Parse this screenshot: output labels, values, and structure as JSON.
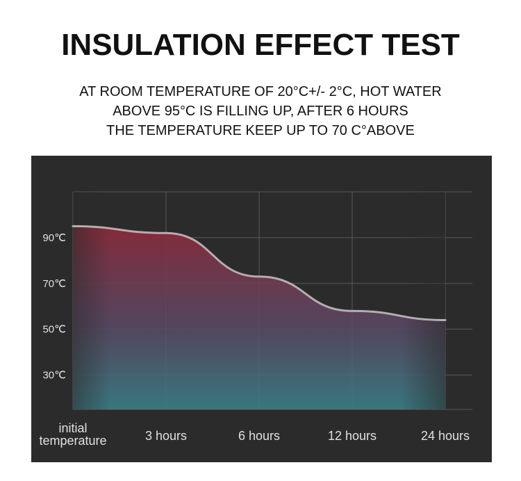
{
  "header": {
    "title": "INSULATION EFFECT TEST",
    "lines": [
      "AT ROOM TEMPERATURE OF 20°C+/- 2°C, HOT WATER",
      "ABOVE 95°C IS FILLING UP, AFTER 6 HOURS",
      "THE TEMPERATURE KEEP UP TO 70 C°ABOVE"
    ]
  },
  "chart_data": {
    "type": "area",
    "title": "",
    "xlabel": "",
    "ylabel": "",
    "categories": [
      "initial temperature",
      "3 hours",
      "6 hours",
      "12 hours",
      "24 hours"
    ],
    "x_tick_lines": [
      [
        "initial",
        "temperature"
      ],
      [
        "3 hours"
      ],
      [
        "6 hours"
      ],
      [
        "12 hours"
      ],
      [
        "24 hours"
      ]
    ],
    "y_ticks": [
      {
        "value": 90,
        "label": "90℃"
      },
      {
        "value": 70,
        "label": "70℃"
      },
      {
        "value": 50,
        "label": "50℃"
      },
      {
        "value": 30,
        "label": "30℃"
      }
    ],
    "ylim": [
      15,
      110
    ],
    "series": [
      {
        "values": [
          95,
          92,
          73,
          58,
          54
        ]
      }
    ],
    "grid": true,
    "colors": {
      "background": "#2b2b2b",
      "grid": "#5a5a5a",
      "curve": "#b0b0b0",
      "fill_top": "#8a2a3a",
      "fill_bottom": "#3a7f88",
      "tick_text": "#e0e0e0"
    }
  }
}
